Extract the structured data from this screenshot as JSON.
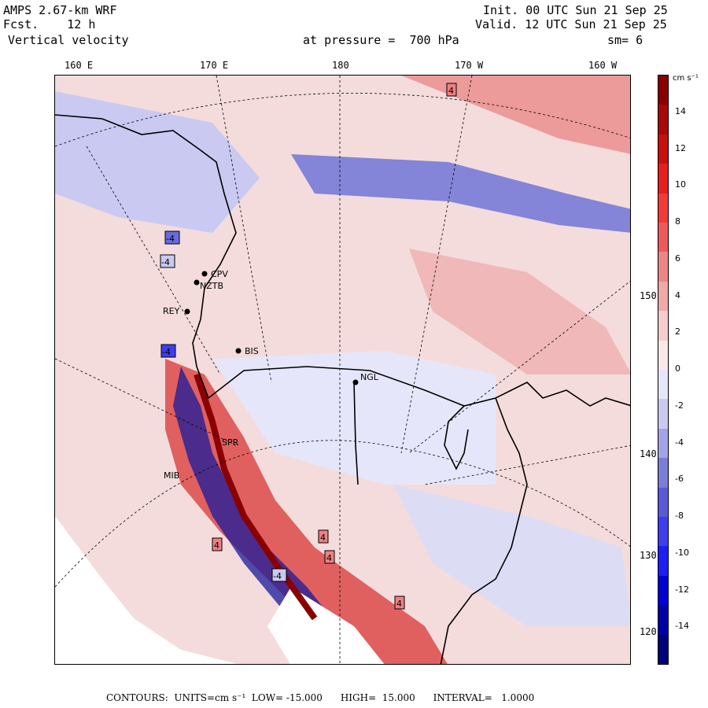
{
  "header": {
    "model": "AMPS 2.67-km WRF",
    "forecast": "Fcst.    12 h",
    "variable": "Vertical velocity",
    "init": "Init. 00 UTC Sun 21 Sep 25",
    "valid": "Valid. 12 UTC Sun 21 Sep 25",
    "level": "at pressure =  700 hPa",
    "smoothing": "sm= 6"
  },
  "longitude_labels": [
    "160 E",
    "170 E",
    "180",
    "170 W",
    "160 W"
  ],
  "latitude_labels": [
    "150 W",
    "140 W",
    "130 W",
    "120 W"
  ],
  "stations": [
    {
      "id": "CPV",
      "label": "CPV"
    },
    {
      "id": "NZTB",
      "label": "NZTB"
    },
    {
      "id": "REY",
      "label": "REY"
    },
    {
      "id": "BIS",
      "label": "BIS"
    },
    {
      "id": "NGL",
      "label": "NGL"
    },
    {
      "id": "SPR",
      "label": "SPR"
    },
    {
      "id": "MIB",
      "label": "MIB"
    }
  ],
  "contour_box_labels": {
    "pos": "4",
    "neg": "-4"
  },
  "colorbar": {
    "unit": "cm s⁻¹",
    "ticks": [
      "14",
      "12",
      "10",
      "8",
      "6",
      "4",
      "2",
      "0",
      "-2",
      "-4",
      "-6",
      "-8",
      "-10",
      "-12",
      "-14"
    ],
    "colors": [
      "#00007a",
      "#0000a8",
      "#0000d6",
      "#1e1ef5",
      "#3e3eef",
      "#5a5ad9",
      "#7c7cd9",
      "#a3a3e8",
      "#c9c9f2",
      "#e6e6fa",
      "#fbe9e9",
      "#f6cccc",
      "#f0a8a8",
      "#ec8686",
      "#ee5a5a",
      "#f23a3a",
      "#e61e1e",
      "#c81010",
      "#a80808",
      "#8a0000"
    ]
  },
  "footer": {
    "text": "CONTOURS:  UNITS=cm s⁻¹  LOW= -15.000      HIGH=  15.000      INTERVAL=   1.0000"
  }
}
